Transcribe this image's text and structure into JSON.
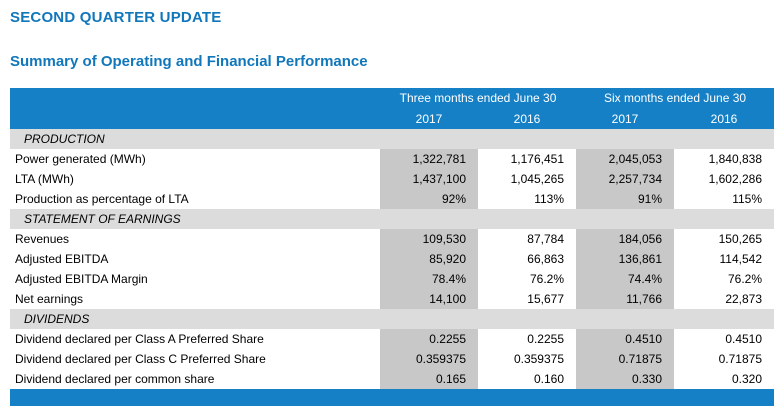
{
  "title": "SECOND QUARTER UPDATE",
  "subtitle": "Summary of Operating and Financial Performance",
  "header": {
    "group1": "Three months ended June 30",
    "group2": "Six months ended June 30",
    "years": [
      "2017",
      "2016",
      "2017",
      "2016"
    ]
  },
  "sections": [
    {
      "label": "PRODUCTION",
      "rows": [
        {
          "label": "Power generated (MWh)",
          "values": [
            "1,322,781",
            "1,176,451",
            "2,045,053",
            "1,840,838"
          ]
        },
        {
          "label": "LTA (MWh)",
          "values": [
            "1,437,100",
            "1,045,265",
            "2,257,734",
            "1,602,286"
          ]
        },
        {
          "label": "Production as percentage of LTA",
          "values": [
            "92%",
            "113%",
            "91%",
            "115%"
          ]
        }
      ]
    },
    {
      "label": "STATEMENT OF EARNINGS",
      "rows": [
        {
          "label": "Revenues",
          "values": [
            "109,530",
            "87,784",
            "184,056",
            "150,265"
          ]
        },
        {
          "label": "Adjusted EBITDA",
          "values": [
            "85,920",
            "66,863",
            "136,861",
            "114,542"
          ]
        },
        {
          "label": "Adjusted EBITDA Margin",
          "values": [
            "78.4%",
            "76.2%",
            "74.4%",
            "76.2%"
          ]
        },
        {
          "label": "Net earnings",
          "values": [
            "14,100",
            "15,677",
            "11,766",
            "22,873"
          ]
        }
      ]
    },
    {
      "label": "DIVIDENDS",
      "rows": [
        {
          "label": "Dividend declared per Class A Preferred Share",
          "values": [
            "0.2255",
            "0.2255",
            "0.4510",
            "0.4510"
          ]
        },
        {
          "label": "Dividend declared per Class C Preferred Share",
          "values": [
            "0.359375",
            "0.359375",
            "0.71875",
            "0.71875"
          ]
        },
        {
          "label": "Dividend declared per common share",
          "values": [
            "0.165",
            "0.160",
            "0.330",
            "0.320"
          ]
        }
      ]
    }
  ]
}
